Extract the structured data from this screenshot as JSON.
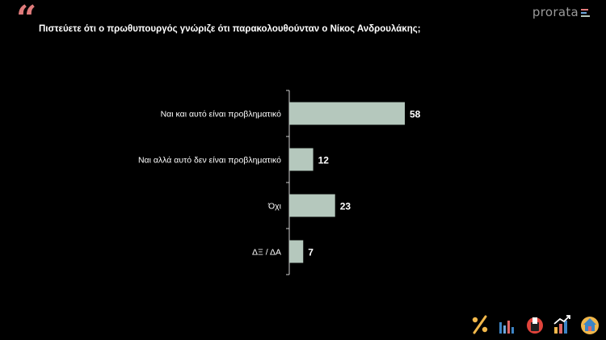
{
  "header": {
    "quote_glyph": "“",
    "brand": "prorata",
    "title": "Πιστεύετε ότι ο πρωθυπουργός γνώριζε ότι παρακολουθούνταν ο Νίκος Ανδρουλάκης;"
  },
  "colors": {
    "background": "#000000",
    "bar": "#b5c8bd",
    "axis": "#cfcfcf",
    "quote": "#e07b7b",
    "label_text": "#ffffff"
  },
  "chart_data": {
    "type": "bar",
    "orientation": "horizontal",
    "categories": [
      "Ναι και αυτό είναι προβληματικό",
      "Ναι αλλά αυτό δεν είναι προβληματικό",
      "Όχι",
      "ΔΞ / ΔΑ"
    ],
    "values": [
      58,
      12,
      23,
      7
    ],
    "title": "Πιστεύετε ότι ο πρωθυπουργός γνώριζε ότι παρακολουθούνταν ο Νίκος Ανδρουλάκης;",
    "xlim": [
      0,
      100
    ],
    "grid": false,
    "legend": "none",
    "data_labels": true
  },
  "footer_icons": [
    "percent-icon",
    "bar-chart-icon",
    "ballot-box-icon",
    "trend-up-icon",
    "home-icon"
  ]
}
